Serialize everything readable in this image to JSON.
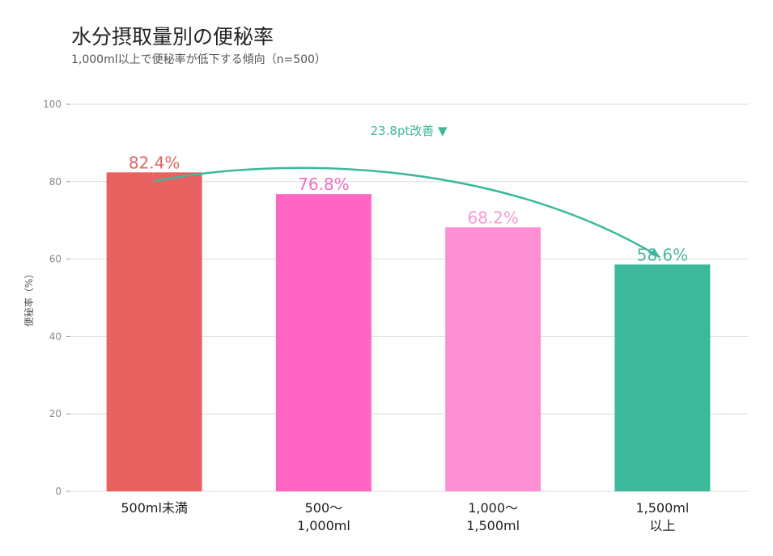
{
  "chart_data": {
    "type": "bar",
    "title": "水分摂取量別の便秘率",
    "subtitle": "1,000ml以上で便秘率が低下する傾向（n=500）",
    "ylabel": "便秘率（%）",
    "xlabel": "",
    "ylim": [
      0,
      100
    ],
    "yticks": [
      0,
      20,
      40,
      60,
      80,
      100
    ],
    "grid": true,
    "categories": [
      [
        "500ml未満"
      ],
      [
        "500〜",
        "1,000ml"
      ],
      [
        "1,000〜",
        "1,500ml"
      ],
      [
        "1,500ml",
        "以上"
      ]
    ],
    "values": [
      82.4,
      76.8,
      68.2,
      58.6
    ],
    "data_labels": [
      "82.4%",
      "76.8%",
      "68.2%",
      "58.6%"
    ],
    "colors": [
      "#e86161",
      "#ff66c4",
      "#ff8fd4",
      "#3cb89a"
    ],
    "label_colors": [
      "#e06666",
      "#f070c0",
      "#f79ad2",
      "#48b69a"
    ],
    "annotation": {
      "text": "23.8pt改善 ▼",
      "color": "#3cb89a",
      "from_category": 0,
      "to_category": 3
    }
  }
}
